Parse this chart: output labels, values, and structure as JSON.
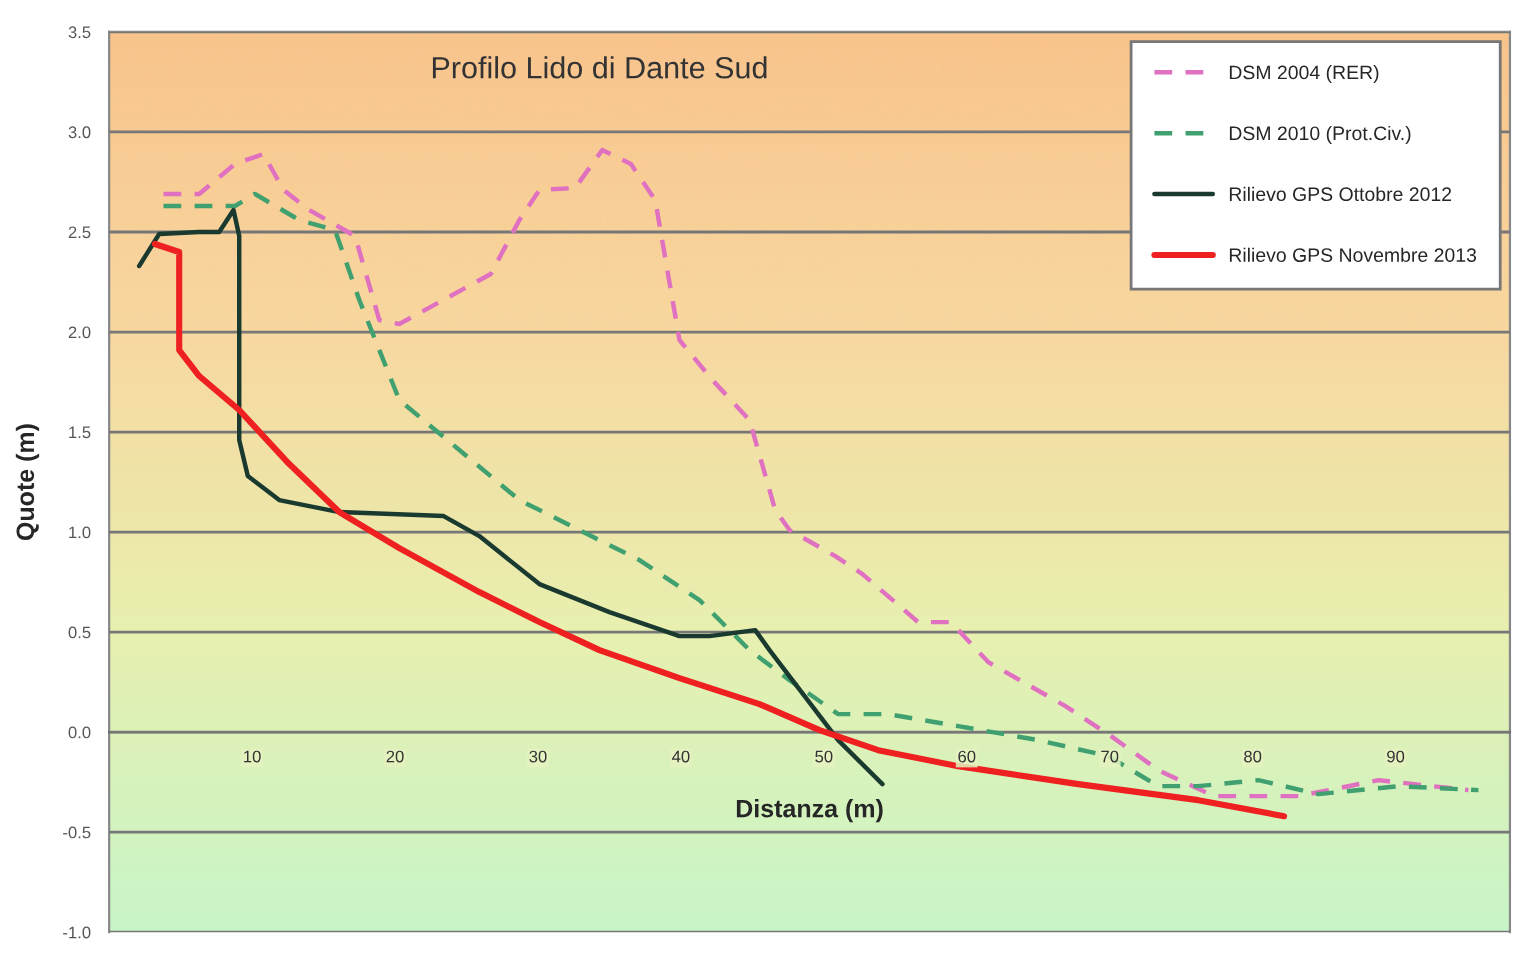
{
  "chart_data": {
    "type": "line",
    "title": "Profilo Lido di Dante Sud",
    "xlabel": "Distanza (m)",
    "ylabel": "Quote (m)",
    "xlim": [
      0,
      98
    ],
    "xticks": [
      10,
      20,
      30,
      40,
      50,
      60,
      70,
      80,
      90
    ],
    "ylim": [
      -1.0,
      3.5
    ],
    "yticks": [
      {
        "value": -1.0,
        "label": "-1.0"
      },
      {
        "value": -0.5,
        "label": "-0.5"
      },
      {
        "value": 0.0,
        "label": "0.0"
      },
      {
        "value": 0.5,
        "label": "0.5"
      },
      {
        "value": 1.0,
        "label": "1.0"
      },
      {
        "value": 1.5,
        "label": "1.5"
      },
      {
        "value": 2.0,
        "label": "2.0"
      },
      {
        "value": 2.5,
        "label": "2.5"
      },
      {
        "value": 3.0,
        "label": "3.0"
      },
      {
        "value": 3.5,
        "label": "3.5"
      }
    ],
    "grid": "y",
    "legend": "top right",
    "marker": "none",
    "series": [
      {
        "name": "DSM 2004 (RER)",
        "color": "#e070c0",
        "line_style": "dashed",
        "x": [
          3.8,
          6.3,
          8.8,
          10.8,
          12.2,
          14,
          17.2,
          18.9,
          20.3,
          26.7,
          28.7,
          30.1,
          32.6,
          34.5,
          36.5,
          38.2,
          39.9,
          42.2,
          44.8,
          46.6,
          47.6,
          50.8,
          52.7,
          56.6,
          58.9,
          61.5,
          66.9,
          70.1,
          73.4,
          77.3,
          83.2,
          88.8,
          95.1
        ],
        "values": [
          2.69,
          2.69,
          2.84,
          2.89,
          2.71,
          2.61,
          2.48,
          2.06,
          2.04,
          2.29,
          2.56,
          2.71,
          2.72,
          2.91,
          2.84,
          2.66,
          1.96,
          1.76,
          1.56,
          1.11,
          1.01,
          0.88,
          0.79,
          0.55,
          0.55,
          0.35,
          0.13,
          -0.02,
          -0.19,
          -0.32,
          -0.32,
          -0.24,
          -0.29
        ]
      },
      {
        "name": "DSM 2010 (Prot.Civ.)",
        "color": "#40a070",
        "line_style": "dashed",
        "x": [
          3.8,
          8.8,
          10.2,
          13.3,
          15.8,
          17.5,
          20.3,
          24.5,
          28.7,
          34.3,
          37.1,
          41.3,
          44.8,
          47.6,
          51,
          54.5,
          59.4,
          65,
          69.9,
          73.4,
          76.2,
          80.4,
          84.6,
          90.2,
          95.8
        ],
        "values": [
          2.63,
          2.63,
          2.69,
          2.56,
          2.51,
          2.16,
          1.66,
          1.41,
          1.16,
          0.96,
          0.86,
          0.66,
          0.41,
          0.26,
          0.09,
          0.09,
          0.03,
          -0.04,
          -0.12,
          -0.27,
          -0.27,
          -0.24,
          -0.31,
          -0.27,
          -0.29
        ]
      },
      {
        "name": "Rilievo GPS Ottobre 2012",
        "color": "#1a3a30",
        "line_style": "solid",
        "x": [
          2.1,
          3.5,
          6.3,
          7.7,
          8.7,
          9.1,
          9.1,
          9.7,
          11.9,
          16.1,
          23.4,
          25.9,
          30.1,
          35,
          39.9,
          42,
          45.2,
          46.2,
          51,
          54.1
        ],
        "values": [
          2.33,
          2.49,
          2.5,
          2.5,
          2.61,
          2.48,
          1.46,
          1.28,
          1.16,
          1.1,
          1.08,
          0.98,
          0.74,
          0.6,
          0.48,
          0.48,
          0.51,
          0.41,
          -0.04,
          -0.26
        ]
      },
      {
        "name": "Rilievo GPS Novembre 2013",
        "color": "#ee2020",
        "line_style": "solid",
        "x": [
          3.2,
          4.9,
          4.9,
          6.3,
          9.1,
          12.6,
          16.1,
          20.3,
          25.9,
          30.1,
          34.3,
          39.9,
          45.5,
          49.7,
          53.8,
          59.4,
          67.8,
          76.2,
          82.2
        ],
        "values": [
          2.44,
          2.4,
          1.91,
          1.78,
          1.61,
          1.34,
          1.1,
          0.92,
          0.7,
          0.55,
          0.41,
          0.27,
          0.14,
          0.01,
          -0.09,
          -0.17,
          -0.26,
          -0.34,
          -0.42
        ]
      }
    ]
  }
}
